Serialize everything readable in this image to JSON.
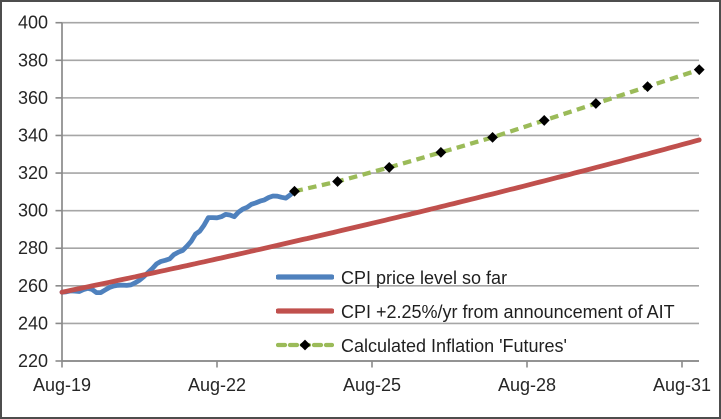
{
  "chart_data": {
    "type": "line",
    "title": "",
    "x_axis": {
      "tick_labels": [
        "Aug-19",
        "Aug-22",
        "Aug-25",
        "Aug-28",
        "Aug-31"
      ],
      "tick_months": [
        0,
        36,
        72,
        108,
        144
      ],
      "axis_start_month": 0,
      "axis_end_month": 148
    },
    "y_axis": {
      "min": 220,
      "max": 400,
      "step": 20,
      "ticks": [
        400,
        380,
        360,
        340,
        320,
        300,
        280,
        260,
        240,
        220
      ]
    },
    "grid": "horizontal",
    "legend_position": "inside-bottom-center",
    "series": [
      {
        "name": "CPI price level so far",
        "type": "line",
        "style": "solid",
        "color": "#4F81BD",
        "start_month": 0,
        "monthly_values": [
          256.6,
          256.8,
          257.3,
          257.2,
          257.0,
          258.0,
          258.7,
          258.1,
          256.4,
          256.4,
          257.8,
          259.1,
          259.9,
          260.3,
          260.4,
          260.2,
          260.5,
          261.6,
          263.0,
          264.9,
          267.1,
          269.2,
          271.7,
          273.0,
          273.6,
          274.3,
          276.6,
          277.9,
          278.8,
          281.1,
          283.7,
          287.5,
          289.1,
          292.3,
          296.3,
          296.3,
          296.2,
          296.8,
          298.0,
          297.7,
          296.8,
          299.2,
          300.8,
          301.8,
          303.4,
          304.1,
          305.1,
          305.7,
          307.0,
          307.8,
          307.7,
          307.1,
          306.7,
          308.4,
          310.3
        ]
      },
      {
        "name": "CPI +2.25%/yr from announcement of AIT",
        "type": "line",
        "style": "solid",
        "color": "#C0504D",
        "formula": {
          "start_value": 256.6,
          "growth_pct_per_year": 2.25,
          "start_month": 0,
          "end_month": 148
        }
      },
      {
        "name": "Calculated Inflation 'Futures'",
        "type": "line",
        "style": "dashed",
        "color": "#9BBB59",
        "marker": "diamond",
        "marker_color": "#000000",
        "points": [
          {
            "month": 54,
            "value": 310.3
          },
          {
            "month": 64,
            "value": 315.5
          },
          {
            "month": 76,
            "value": 323.0
          },
          {
            "month": 88,
            "value": 331.0
          },
          {
            "month": 100,
            "value": 339.0
          },
          {
            "month": 112,
            "value": 348.0
          },
          {
            "month": 124,
            "value": 357.0
          },
          {
            "month": 136,
            "value": 366.0
          },
          {
            "month": 148,
            "value": 375.0
          }
        ]
      }
    ]
  },
  "colors": {
    "background": "#FFFFFF",
    "outer_border": "#4D4D4D",
    "gridline": "#A6A6A6",
    "axis": "#8A8A8A",
    "tick_text": "#262626",
    "series_blue": "#4F81BD",
    "series_red": "#C0504D",
    "series_green": "#9BBB59",
    "marker_black": "#000000"
  }
}
